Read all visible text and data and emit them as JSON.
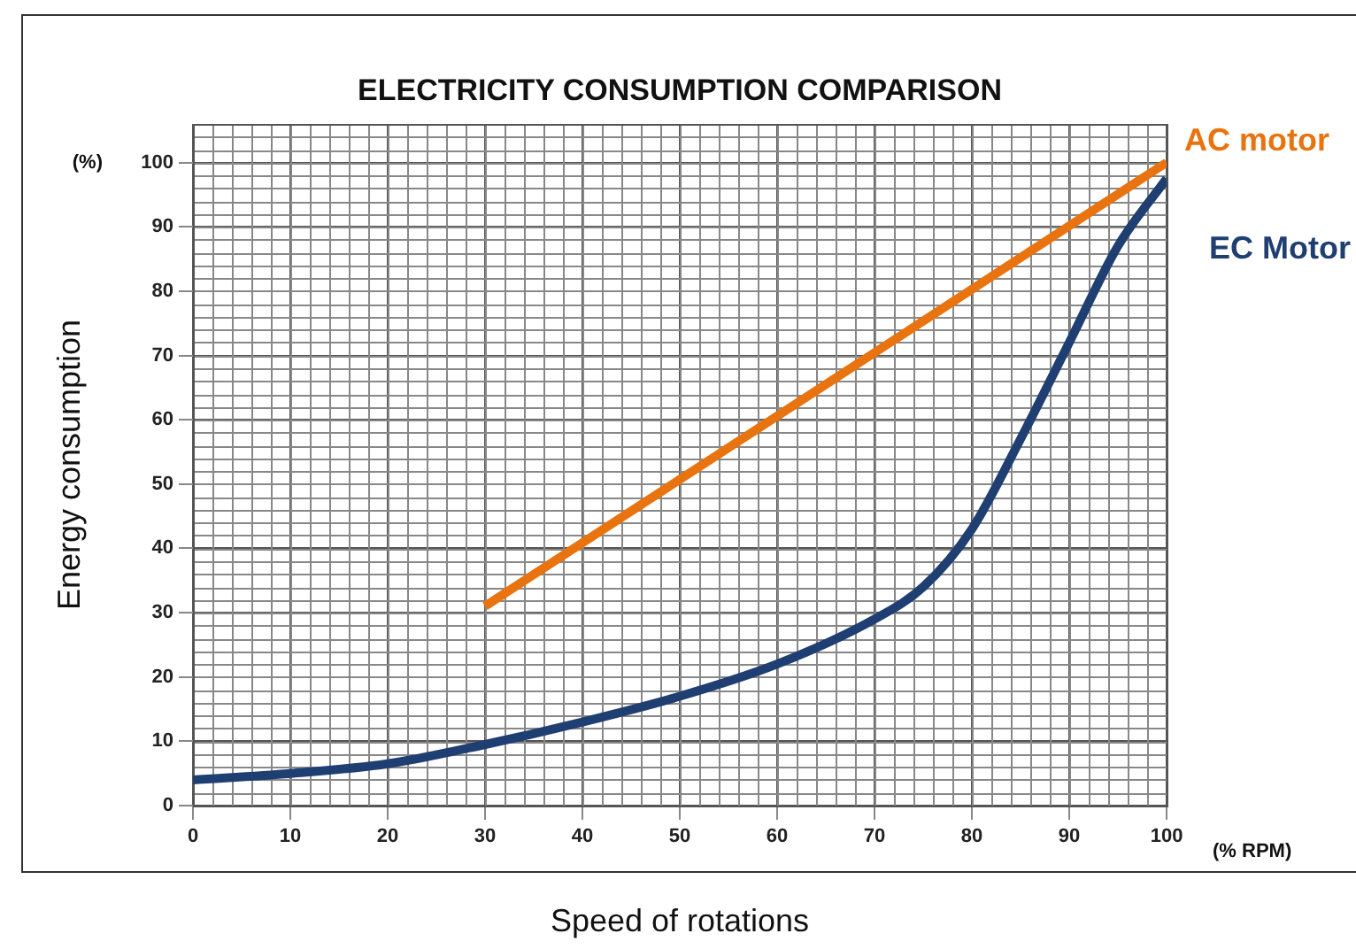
{
  "chart_data": {
    "type": "line",
    "title": "ELECTRICITY CONSUMPTION COMPARISON",
    "xlabel": "Speed of rotations",
    "ylabel": "Energy consumption",
    "annotations": [
      "(%)",
      "(% RPM)"
    ],
    "xlim": [
      0,
      100
    ],
    "xticks": [
      0,
      10,
      20,
      30,
      40,
      50,
      60,
      70,
      80,
      90,
      100
    ],
    "ylim": [
      0,
      106
    ],
    "yticks": [
      0,
      10,
      20,
      30,
      40,
      50,
      60,
      70,
      80,
      90,
      100
    ],
    "grid": true,
    "legend": false,
    "marker": "none",
    "line_style": "solid",
    "series": [
      {
        "name": "AC motor",
        "color": "#e8730f",
        "x": [
          30,
          100
        ],
        "values": [
          31,
          100
        ]
      },
      {
        "name": "EC Motor",
        "color": "#1f3f73",
        "x": [
          0,
          10,
          20,
          30,
          40,
          50,
          60,
          70,
          75,
          80,
          85,
          90,
          95,
          100
        ],
        "values": [
          4,
          5,
          6.5,
          9.5,
          13,
          17,
          22,
          29,
          34,
          43,
          57,
          72,
          87,
          97.5
        ]
      }
    ]
  }
}
